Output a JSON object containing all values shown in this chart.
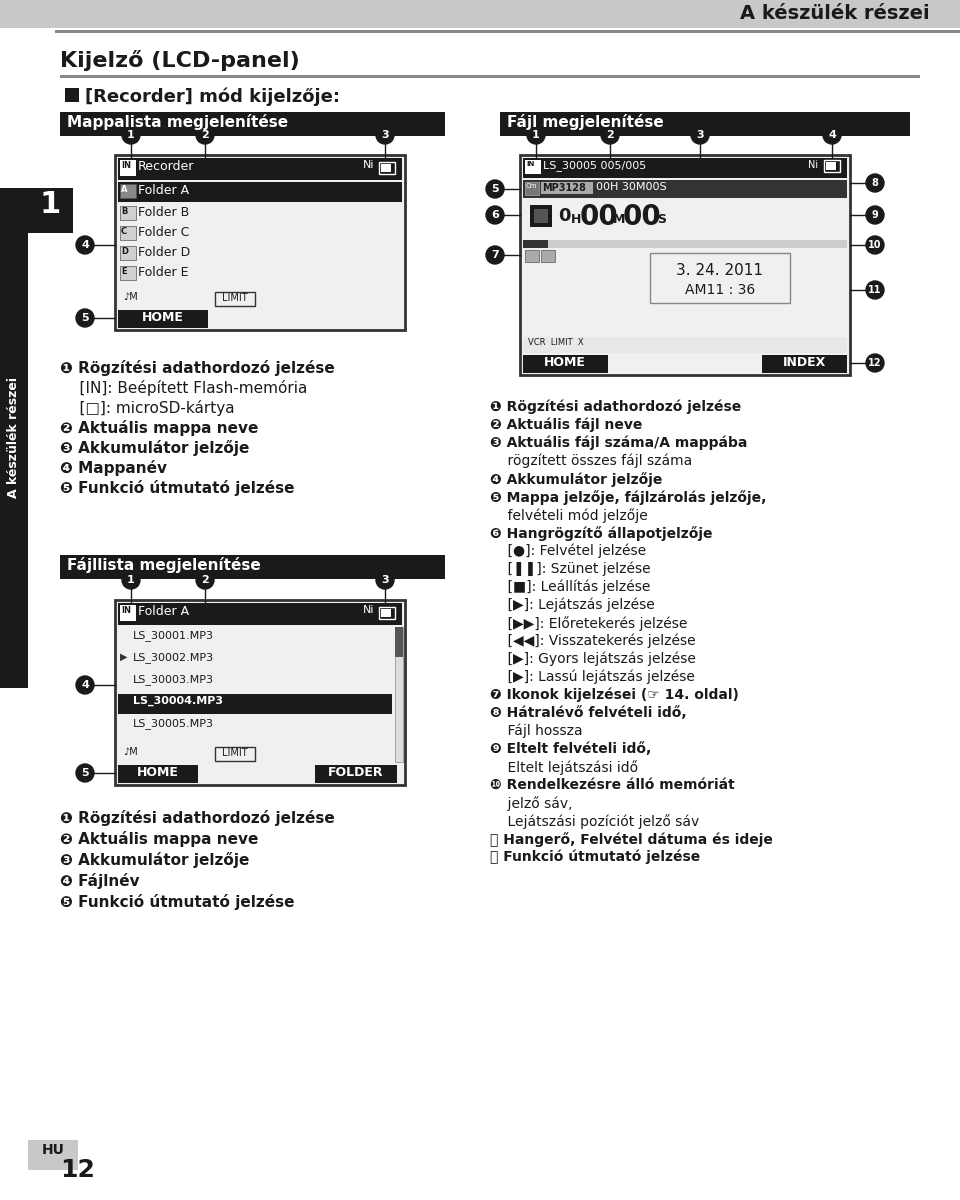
{
  "bg_color": "#ffffff",
  "page_title": "A készülék részei",
  "section_title": "Kijelző (LCD-panel)",
  "subsection_title": "[Recorder] mód kijelzője:",
  "header_mappalista": "Mappalista megjelenítése",
  "header_fajl": "Fájl megjelenítése",
  "header_fajllista": "Fájllista megjelenítése",
  "header_bg": "#1a1a1a",
  "header_fg": "#ffffff",
  "side_label": "A készülék részei",
  "page_num": "1",
  "bottom_left": "HU",
  "bottom_right": "12",
  "left_anno": [
    [
      "❶ Rögzítési adathordozó jelzése",
      true
    ],
    [
      "    [IN]: Beépített Flash-memória",
      false
    ],
    [
      "    [□]: microSD-kártya",
      false
    ],
    [
      "❷ Aktuális mappa neve",
      true
    ],
    [
      "❸ Akkumulátor jelzője",
      true
    ],
    [
      "❹ Mappanév",
      true
    ],
    [
      "❺ Funkció útmutató jelzése",
      true
    ]
  ],
  "right_anno": [
    [
      "❶ Rögzítési adathordozó jelzése",
      true
    ],
    [
      "❷ Aktuális fájl neve",
      true
    ],
    [
      "❸ Aktuális fájl száma/A mappába",
      true
    ],
    [
      "    rögzített összes fájl száma",
      false
    ],
    [
      "❹ Akkumulátor jelzője",
      true
    ],
    [
      "❺ Mappa jelzője, fájlzárolás jelzője,",
      true
    ],
    [
      "    felvételi mód jelzője",
      false
    ],
    [
      "❻ Hangrögzítő állapotjelzője",
      true
    ],
    [
      "    [●]: Felvétel jelzése",
      false
    ],
    [
      "    [❚❚]: Szünet jelzése",
      false
    ],
    [
      "    [■]: Leállítás jelzése",
      false
    ],
    [
      "    [▶]: Lejátszás jelzése",
      false
    ],
    [
      "    [▶▶]: Előretekerés jelzése",
      false
    ],
    [
      "    [◀◀]: Visszatekerés jelzése",
      false
    ],
    [
      "    [▶]: Gyors lejátszás jelzése",
      false
    ],
    [
      "    [▶]: Lassú lejátszás jelzése",
      false
    ],
    [
      "❼ Ikonok kijelzései (☞ 14. oldal)",
      true
    ],
    [
      "❽ Hátralévő felvételi idő,",
      true
    ],
    [
      "    Fájl hossza",
      false
    ],
    [
      "❾ Eltelt felvételi idő,",
      true
    ],
    [
      "    Eltelt lejátszási idő",
      false
    ],
    [
      "❿ Rendelkezésre álló memóriát",
      true
    ],
    [
      "    jelző sáv,",
      false
    ],
    [
      "    Lejátszási pozíciót jelző sáv",
      false
    ],
    [
      "⓫ Hangerő, Felvétel dátuma és ideje",
      true
    ],
    [
      "⓬ Funkció útmutató jelzése",
      true
    ]
  ],
  "fajllista_anno": [
    [
      "❶ Rögzítési adathordozó jelzése",
      true
    ],
    [
      "❷ Aktuális mappa neve",
      true
    ],
    [
      "❸ Akkumulátor jelzője",
      true
    ],
    [
      "❹ Fájlnév",
      true
    ],
    [
      "❺ Funkció útmutató jelzése",
      true
    ]
  ]
}
